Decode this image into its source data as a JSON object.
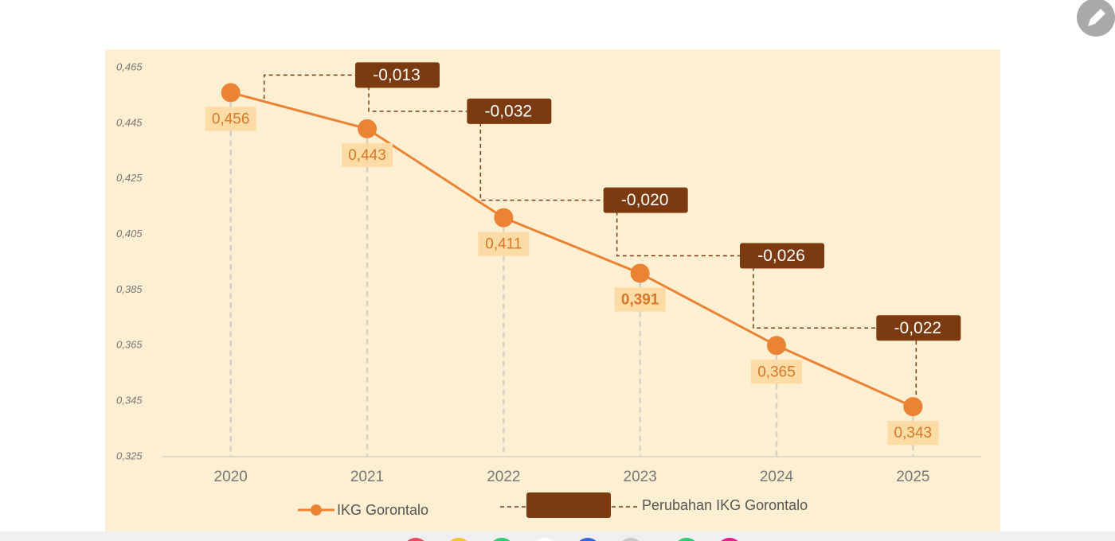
{
  "chart_data": {
    "type": "line",
    "categories": [
      "2020",
      "2021",
      "2022",
      "2023",
      "2024",
      "2025"
    ],
    "series": [
      {
        "name": "IKG Gorontalo",
        "color": "#ea8334",
        "values": [
          0.456,
          0.443,
          0.411,
          0.391,
          0.365,
          0.343
        ],
        "value_labels": [
          "0,456",
          "0,443",
          "0,411",
          "0,391",
          "0,365",
          "0,343"
        ]
      },
      {
        "name": "Perubahan IKG Gorontalo",
        "color": "#7b3a0f",
        "values": [
          null,
          -0.013,
          -0.032,
          -0.02,
          -0.026,
          -0.022
        ],
        "value_labels": [
          null,
          "-0,013",
          "-0,032",
          "-0,020",
          "-0,026",
          "-0,022"
        ]
      }
    ],
    "ylim": [
      0.325,
      0.465
    ],
    "yticks": [
      {
        "value": 0.325,
        "label": "0,325"
      },
      {
        "value": 0.345,
        "label": "0,345"
      },
      {
        "value": 0.365,
        "label": "0,365"
      },
      {
        "value": 0.385,
        "label": "0,385"
      },
      {
        "value": 0.405,
        "label": "0,405"
      },
      {
        "value": 0.425,
        "label": "0,425"
      },
      {
        "value": 0.445,
        "label": "0,445"
      },
      {
        "value": 0.465,
        "label": "0,465"
      }
    ]
  }
}
